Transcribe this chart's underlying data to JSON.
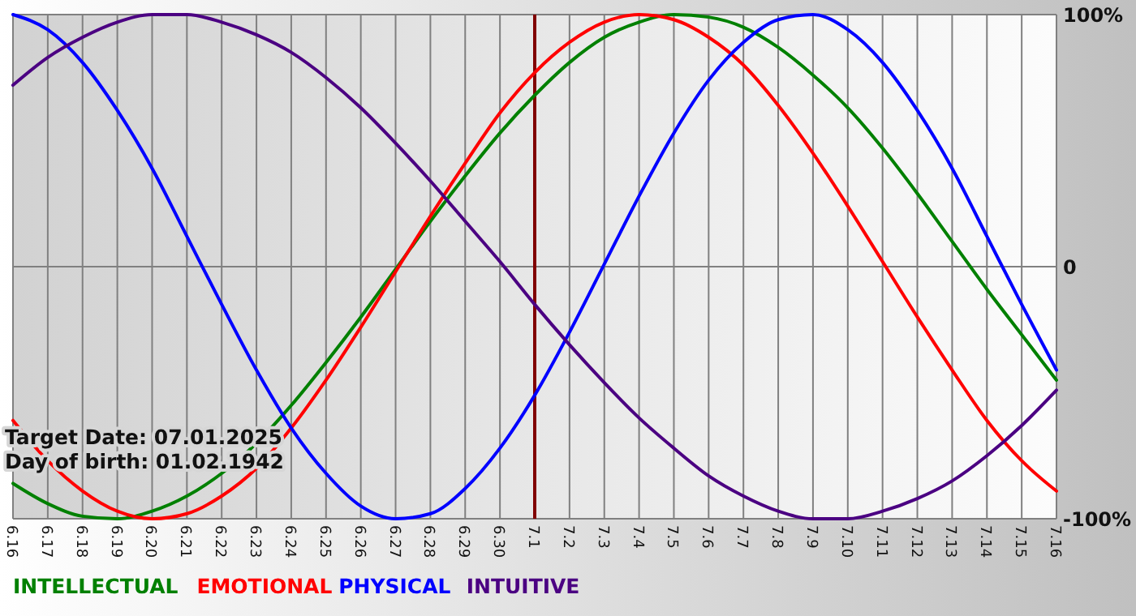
{
  "chart_data": {
    "type": "line",
    "categories": [
      "6.16",
      "6.17",
      "6.18",
      "6.19",
      "6.20",
      "6.21",
      "6.22",
      "6.23",
      "6.24",
      "6.25",
      "6.26",
      "6.27",
      "6.28",
      "6.29",
      "6.30",
      "7.1",
      "7.2",
      "7.3",
      "7.4",
      "7.5",
      "7.6",
      "7.7",
      "7.8",
      "7.9",
      "7.10",
      "7.11",
      "7.12",
      "7.13",
      "7.14",
      "7.15",
      "7.16"
    ],
    "series": [
      {
        "name": "INTELLECTUAL",
        "color": "#008000",
        "values": [
          -86,
          -94,
          -99,
          -100,
          -97,
          -91,
          -82,
          -70,
          -55,
          -38,
          -20,
          -1,
          18,
          36,
          53,
          68,
          81,
          91,
          97,
          100,
          99,
          95,
          87,
          76,
          63,
          47,
          29,
          10,
          -9,
          -27,
          -45
        ]
      },
      {
        "name": "EMOTIONAL",
        "color": "#ff0000",
        "values": [
          -61,
          -77,
          -89,
          -97,
          -100,
          -98,
          -91,
          -80,
          -64,
          -45,
          -24,
          -2,
          20,
          41,
          61,
          77,
          89,
          97,
          100,
          98,
          91,
          80,
          64,
          45,
          24,
          2,
          -20,
          -41,
          -61,
          -77,
          -89
        ]
      },
      {
        "name": "PHYSICAL",
        "color": "#0000ff",
        "values": [
          100,
          94,
          81,
          62,
          39,
          12,
          -15,
          -41,
          -64,
          -82,
          -95,
          -100,
          -98,
          -88,
          -72,
          -51,
          -26,
          1,
          28,
          53,
          74,
          89,
          98,
          100,
          94,
          81,
          62,
          39,
          12,
          -15,
          -41
        ]
      },
      {
        "name": "INTUITIVE",
        "color": "#4b0082",
        "values": [
          72,
          83,
          91,
          97,
          100,
          100,
          97,
          92,
          85,
          75,
          63,
          49,
          34,
          18,
          2,
          -15,
          -31,
          -46,
          -60,
          -72,
          -83,
          -91,
          -97,
          -100,
          -100,
          -97,
          -92,
          -85,
          -75,
          -63,
          -49
        ]
      }
    ],
    "ylim": [
      -100,
      100
    ],
    "yticks": [
      {
        "value": 100,
        "label": "100%"
      },
      0,
      {
        "value": -100,
        "label": "-100%"
      }
    ],
    "grid": true,
    "legend": "bottom",
    "marker": "none",
    "line_style": "solid",
    "ref_lines": [
      {
        "axis": "x",
        "value": "7.1",
        "color": "#800000"
      }
    ],
    "annotations": [
      "Target Date: 07.01.2025",
      "Day of birth: 01.02.1942"
    ]
  }
}
